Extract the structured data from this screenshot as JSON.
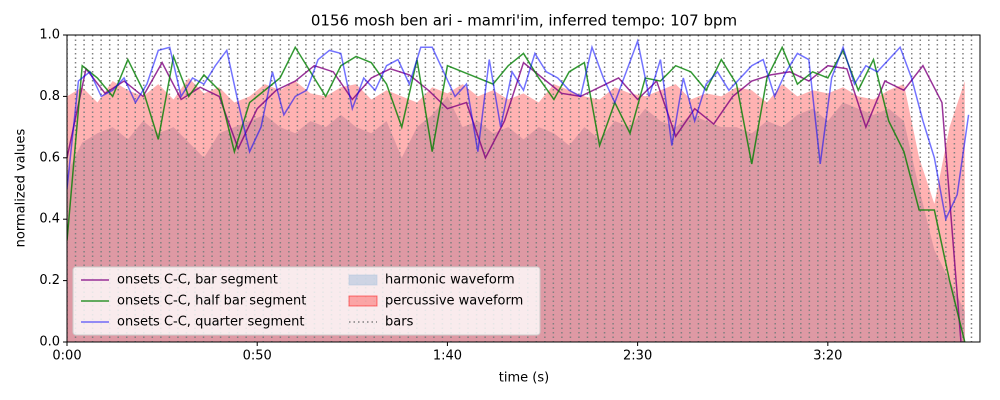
{
  "chart_data": {
    "type": "line",
    "title": "0156 mosh ben ari - mamri'im, inferred tempo: 107 bpm",
    "x_label": "time (s)",
    "y_label": "normalized values",
    "xlim": [
      0,
      240
    ],
    "ylim": [
      0,
      1
    ],
    "xticks": [
      {
        "value": 0,
        "label": "0:00"
      },
      {
        "value": 50,
        "label": "0:50"
      },
      {
        "value": 100,
        "label": "1:40"
      },
      {
        "value": 150,
        "label": "2:30"
      },
      {
        "value": 200,
        "label": "3:20"
      }
    ],
    "yticks": [
      {
        "value": 0,
        "label": "0.0"
      },
      {
        "value": 0.2,
        "label": "0.2"
      },
      {
        "value": 0.4,
        "label": "0.4"
      },
      {
        "value": 0.6,
        "label": "0.6"
      },
      {
        "value": 0.8,
        "label": "0.8"
      },
      {
        "value": 1,
        "label": "1.0"
      }
    ],
    "legend": "lower left",
    "series": [
      {
        "name": "onsets C-C, bar segment",
        "kind": "line",
        "color": "#800080",
        "x": [
          0,
          5,
          10,
          15,
          20,
          25,
          30,
          35,
          40,
          45,
          50,
          55,
          60,
          65,
          70,
          75,
          80,
          85,
          90,
          95,
          100,
          105,
          110,
          115,
          120,
          125,
          130,
          135,
          140,
          145,
          150,
          155,
          160,
          165,
          170,
          175,
          180,
          185,
          190,
          195,
          200,
          205,
          210,
          215,
          220,
          225,
          230,
          235
        ],
        "values": [
          0.6,
          0.89,
          0.81,
          0.85,
          0.8,
          0.91,
          0.79,
          0.83,
          0.8,
          0.63,
          0.76,
          0.82,
          0.85,
          0.9,
          0.88,
          0.79,
          0.86,
          0.89,
          0.87,
          0.82,
          0.76,
          0.78,
          0.6,
          0.72,
          0.91,
          0.86,
          0.81,
          0.8,
          0.83,
          0.86,
          0.79,
          0.85,
          0.67,
          0.76,
          0.71,
          0.8,
          0.85,
          0.87,
          0.88,
          0.85,
          0.9,
          0.89,
          0.7,
          0.85,
          0.82,
          0.9,
          0.78,
          0.0
        ]
      },
      {
        "name": "onsets C-C, half bar segment",
        "kind": "line",
        "color": "#008000",
        "x": [
          0,
          4,
          8,
          12,
          16,
          20,
          24,
          28,
          32,
          36,
          40,
          44,
          48,
          52,
          56,
          60,
          64,
          68,
          72,
          76,
          80,
          84,
          88,
          92,
          96,
          100,
          104,
          108,
          112,
          116,
          120,
          124,
          128,
          132,
          136,
          140,
          144,
          148,
          152,
          156,
          160,
          164,
          168,
          172,
          176,
          180,
          184,
          188,
          192,
          196,
          200,
          204,
          208,
          212,
          216,
          220,
          224,
          228,
          232,
          236
        ],
        "values": [
          0.33,
          0.9,
          0.86,
          0.8,
          0.92,
          0.82,
          0.66,
          0.93,
          0.8,
          0.87,
          0.82,
          0.62,
          0.78,
          0.82,
          0.86,
          0.96,
          0.88,
          0.8,
          0.9,
          0.93,
          0.91,
          0.84,
          0.7,
          0.92,
          0.62,
          0.9,
          0.88,
          0.86,
          0.84,
          0.9,
          0.94,
          0.86,
          0.79,
          0.88,
          0.91,
          0.64,
          0.78,
          0.68,
          0.86,
          0.85,
          0.9,
          0.88,
          0.82,
          0.92,
          0.84,
          0.58,
          0.86,
          0.96,
          0.84,
          0.88,
          0.86,
          0.95,
          0.82,
          0.92,
          0.72,
          0.62,
          0.43,
          0.43,
          0.2,
          0.0
        ]
      },
      {
        "name": "onsets C-C, quarter segment",
        "kind": "line",
        "color": "#0000ff",
        "x": [
          0,
          3,
          6,
          9,
          12,
          15,
          18,
          21,
          24,
          27,
          30,
          33,
          36,
          39,
          42,
          45,
          48,
          51,
          54,
          57,
          60,
          63,
          66,
          69,
          72,
          75,
          78,
          81,
          84,
          87,
          90,
          93,
          96,
          99,
          102,
          105,
          108,
          111,
          114,
          117,
          120,
          123,
          126,
          129,
          132,
          135,
          138,
          141,
          144,
          147,
          150,
          153,
          156,
          159,
          162,
          165,
          168,
          171,
          174,
          177,
          180,
          183,
          186,
          189,
          192,
          195,
          198,
          201,
          204,
          207,
          210,
          213,
          216,
          219,
          222,
          225,
          228,
          231,
          234,
          237
        ],
        "values": [
          0.5,
          0.85,
          0.88,
          0.8,
          0.82,
          0.86,
          0.78,
          0.84,
          0.95,
          0.96,
          0.8,
          0.86,
          0.84,
          0.9,
          0.95,
          0.78,
          0.62,
          0.7,
          0.88,
          0.74,
          0.8,
          0.82,
          0.92,
          0.95,
          0.94,
          0.76,
          0.86,
          0.82,
          0.9,
          0.92,
          0.84,
          0.96,
          0.96,
          0.88,
          0.8,
          0.84,
          0.62,
          0.92,
          0.7,
          0.88,
          0.82,
          0.94,
          0.88,
          0.86,
          0.82,
          0.8,
          0.96,
          0.86,
          0.78,
          0.88,
          0.98,
          0.8,
          0.92,
          0.64,
          0.86,
          0.72,
          0.84,
          0.88,
          0.82,
          0.86,
          0.9,
          0.92,
          0.8,
          0.88,
          0.94,
          0.92,
          0.58,
          0.86,
          0.96,
          0.84,
          0.9,
          0.88,
          0.92,
          0.96,
          0.86,
          0.72,
          0.6,
          0.4,
          0.48,
          0.74
        ]
      },
      {
        "name": "harmonic waveform",
        "kind": "area",
        "color": "#b0c4de",
        "x": [
          0,
          4,
          8,
          12,
          16,
          20,
          24,
          28,
          32,
          36,
          40,
          44,
          48,
          52,
          56,
          60,
          64,
          68,
          72,
          76,
          80,
          84,
          88,
          92,
          96,
          100,
          104,
          108,
          112,
          116,
          120,
          124,
          128,
          132,
          136,
          140,
          144,
          148,
          152,
          156,
          160,
          164,
          168,
          172,
          176,
          180,
          184,
          188,
          192,
          196,
          200,
          204,
          208,
          212,
          216,
          220,
          224,
          228,
          232,
          236
        ],
        "values": [
          0.55,
          0.65,
          0.68,
          0.7,
          0.66,
          0.72,
          0.68,
          0.7,
          0.65,
          0.6,
          0.68,
          0.7,
          0.72,
          0.74,
          0.7,
          0.68,
          0.72,
          0.7,
          0.74,
          0.7,
          0.68,
          0.72,
          0.6,
          0.7,
          0.74,
          0.8,
          0.7,
          0.72,
          0.68,
          0.7,
          0.66,
          0.7,
          0.68,
          0.64,
          0.7,
          0.66,
          0.72,
          0.7,
          0.76,
          0.72,
          0.7,
          0.74,
          0.72,
          0.7,
          0.7,
          0.68,
          0.72,
          0.7,
          0.74,
          0.76,
          0.72,
          0.78,
          0.76,
          0.74,
          0.76,
          0.72,
          0.5,
          0.3,
          0.2,
          0.1
        ]
      },
      {
        "name": "percussive waveform",
        "kind": "area",
        "color": "#ff0000",
        "x": [
          0,
          4,
          8,
          12,
          16,
          20,
          24,
          28,
          32,
          36,
          40,
          44,
          48,
          52,
          56,
          60,
          64,
          68,
          72,
          76,
          80,
          84,
          88,
          92,
          96,
          100,
          104,
          108,
          112,
          116,
          120,
          124,
          128,
          132,
          136,
          140,
          144,
          148,
          152,
          156,
          160,
          164,
          168,
          172,
          176,
          180,
          184,
          188,
          192,
          196,
          200,
          204,
          208,
          212,
          216,
          220,
          224,
          228,
          232,
          236
        ],
        "values": [
          0.8,
          0.83,
          0.78,
          0.85,
          0.82,
          0.8,
          0.84,
          0.79,
          0.86,
          0.81,
          0.83,
          0.78,
          0.8,
          0.84,
          0.82,
          0.85,
          0.81,
          0.8,
          0.83,
          0.84,
          0.79,
          0.82,
          0.8,
          0.78,
          0.83,
          0.81,
          0.84,
          0.8,
          0.82,
          0.79,
          0.81,
          0.78,
          0.84,
          0.82,
          0.8,
          0.79,
          0.83,
          0.81,
          0.8,
          0.82,
          0.84,
          0.79,
          0.81,
          0.8,
          0.83,
          0.82,
          0.78,
          0.84,
          0.8,
          0.82,
          0.81,
          0.83,
          0.8,
          0.79,
          0.82,
          0.84,
          0.6,
          0.45,
          0.7,
          0.85
        ]
      },
      {
        "name": "bars",
        "kind": "vlines",
        "color": "#808080",
        "x": [
          0,
          2.24,
          4.49,
          6.73,
          8.97,
          11.22,
          13.46,
          15.7,
          17.94,
          20.19,
          22.43,
          24.67,
          26.92,
          29.16,
          31.4,
          33.65,
          35.89,
          38.13,
          40.37,
          42.62,
          44.86,
          47.1,
          49.35,
          51.59,
          53.83,
          56.08,
          58.32,
          60.56,
          62.8,
          65.05,
          67.29,
          69.53,
          71.78,
          74.02,
          76.26,
          78.51,
          80.75,
          82.99,
          85.23,
          87.48,
          89.72,
          91.96,
          94.21,
          96.45,
          98.69,
          100.94,
          103.18,
          105.42,
          107.66,
          109.91,
          112.15,
          114.39,
          116.64,
          118.88,
          121.12,
          123.37,
          125.61,
          127.85,
          130.09,
          132.34,
          134.58,
          136.82,
          139.07,
          141.31,
          143.55,
          145.8,
          148.04,
          150.28,
          152.52,
          154.77,
          157.01,
          159.25,
          161.5,
          163.74,
          165.98,
          168.23,
          170.47,
          172.71,
          174.95,
          177.2,
          179.44,
          181.68,
          183.93,
          186.17,
          188.41,
          190.66,
          192.9,
          195.14,
          197.38,
          199.63,
          201.87,
          204.11,
          206.36,
          208.6,
          210.84,
          213.09,
          215.33,
          217.57,
          219.81,
          222.06,
          224.3,
          226.54,
          228.79,
          231.03,
          233.27,
          235.52,
          237.76
        ]
      }
    ]
  }
}
